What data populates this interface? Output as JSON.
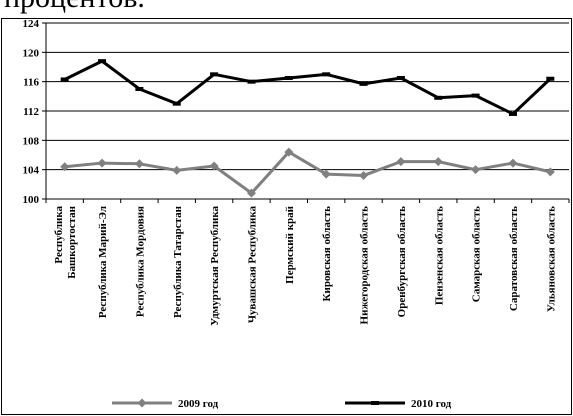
{
  "page": {
    "top_text": "процентов."
  },
  "chart_data": {
    "type": "line",
    "categories": [
      "Республика Башкортостан",
      "Республика Марий-Эл",
      "Республика Мордовия",
      "Республика Татарстан",
      "Удмуртская Республика",
      "Чувашская Республика",
      "Пермский край",
      "Кировская область",
      "Нижегородская область",
      "Оренбургская область",
      "Пензенская область",
      "Самарская область",
      "Саратовская область",
      "Ульяновская область"
    ],
    "series": [
      {
        "name": "2009 год",
        "color": "#808080",
        "marker": "diamond",
        "values": [
          104.4,
          104.9,
          104.8,
          103.9,
          104.5,
          100.8,
          106.4,
          103.4,
          103.2,
          105.1,
          105.1,
          104.0,
          104.9,
          103.7
        ]
      },
      {
        "name": "2010 год",
        "color": "#000000",
        "marker": "dash",
        "values": [
          116.3,
          118.8,
          115.0,
          113.0,
          117.0,
          116.0,
          116.5,
          117.0,
          115.7,
          116.5,
          113.8,
          114.1,
          111.6,
          116.4
        ]
      }
    ],
    "yticks": [
      100,
      104,
      108,
      112,
      116,
      120,
      124
    ],
    "ylim": [
      100,
      124
    ],
    "grid": true,
    "legend_position": "bottom"
  }
}
